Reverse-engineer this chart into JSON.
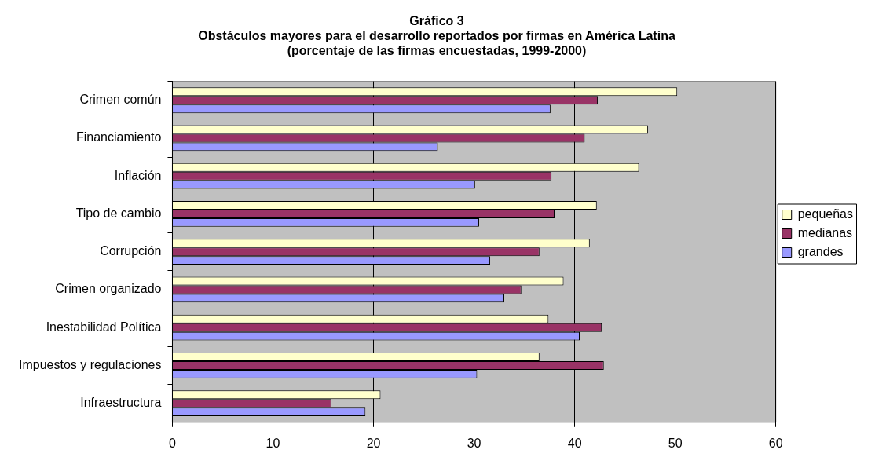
{
  "chart_data": {
    "type": "bar",
    "orientation": "horizontal",
    "title": [
      "Gráfico 3",
      "Obstáculos mayores para el desarrollo reportados por firmas en América Latina",
      "(porcentaje de las firmas encuestadas, 1999-2000)"
    ],
    "categories": [
      "Crimen común",
      "Financiamiento",
      "Inflación",
      "Tipo de cambio",
      "Corrupción",
      "Crimen organizado",
      "Inestabilidad Política",
      "Impuestos y regulaciones",
      "Infraestructura"
    ],
    "series": [
      {
        "name": "pequeñas",
        "color": "#ffffcc",
        "values": [
          50.2,
          47.3,
          46.4,
          42.2,
          41.5,
          38.9,
          37.4,
          36.5,
          20.7
        ]
      },
      {
        "name": "medianas",
        "color": "#993366",
        "values": [
          42.3,
          41.0,
          37.7,
          38.0,
          36.5,
          34.7,
          42.7,
          42.9,
          15.8
        ]
      },
      {
        "name": "grandes",
        "color": "#9999ff",
        "values": [
          37.6,
          26.4,
          30.1,
          30.5,
          31.6,
          33.0,
          40.5,
          30.3,
          19.2
        ]
      }
    ],
    "xlim": [
      0,
      60
    ],
    "xticks": [
      0,
      10,
      20,
      30,
      40,
      50,
      60
    ],
    "grid": "x",
    "legend": "right"
  }
}
